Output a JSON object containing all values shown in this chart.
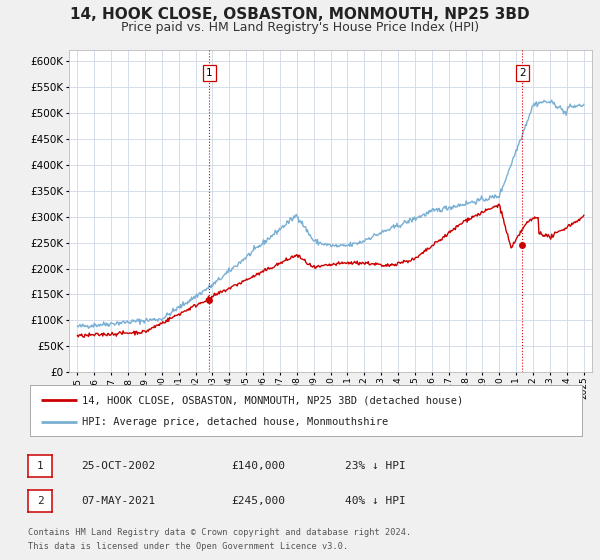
{
  "title": "14, HOOK CLOSE, OSBASTON, MONMOUTH, NP25 3BD",
  "subtitle": "Price paid vs. HM Land Registry's House Price Index (HPI)",
  "title_fontsize": 11,
  "subtitle_fontsize": 9,
  "background_color": "#f0f0f0",
  "plot_bg_color": "#ffffff",
  "grid_color": "#d0d8e8",
  "ylim": [
    0,
    620000
  ],
  "yticks": [
    0,
    50000,
    100000,
    150000,
    200000,
    250000,
    300000,
    350000,
    400000,
    450000,
    500000,
    550000,
    600000
  ],
  "xlim_start": 1994.5,
  "xlim_end": 2025.5,
  "xticks": [
    1995,
    1996,
    1997,
    1998,
    1999,
    2000,
    2001,
    2002,
    2003,
    2004,
    2005,
    2006,
    2007,
    2008,
    2009,
    2010,
    2011,
    2012,
    2013,
    2014,
    2015,
    2016,
    2017,
    2018,
    2019,
    2020,
    2021,
    2022,
    2023,
    2024,
    2025
  ],
  "sale1_x": 2002.82,
  "sale1_y": 140000,
  "sale1_label": "1",
  "sale1_date": "25-OCT-2002",
  "sale1_price": "£140,000",
  "sale1_hpi": "23% ↓ HPI",
  "sale2_x": 2021.35,
  "sale2_y": 245000,
  "sale2_label": "2",
  "sale2_date": "07-MAY-2021",
  "sale2_price": "£245,000",
  "sale2_hpi": "40% ↓ HPI",
  "line_color_property": "#cc0000",
  "line_color_hpi": "#7ab0d4",
  "marker_color": "#cc0000",
  "vline_color": "#dd0000",
  "legend_label_property": "14, HOOK CLOSE, OSBASTON, MONMOUTH, NP25 3BD (detached house)",
  "legend_label_hpi": "HPI: Average price, detached house, Monmouthshire",
  "footnote_line1": "Contains HM Land Registry data © Crown copyright and database right 2024.",
  "footnote_line2": "This data is licensed under the Open Government Licence v3.0."
}
